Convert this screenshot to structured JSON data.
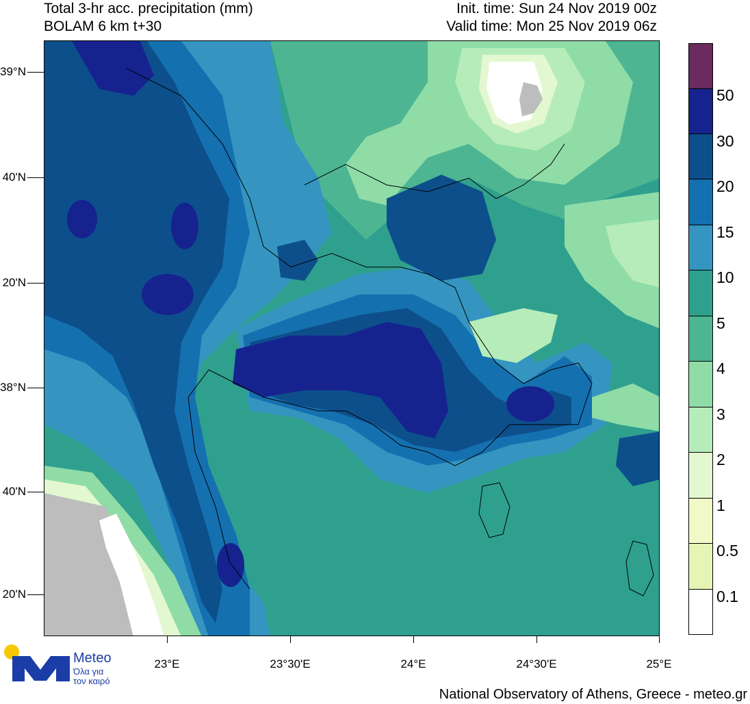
{
  "header": {
    "title_line1": "Total 3-hr acc. precipitation (mm)",
    "title_line2": "BOLAM 6 km t+30",
    "init_time": "Init. time: Sun 24 Nov 2019 00z",
    "valid_time": "Valid time: Mon 25 Nov 2019 06z"
  },
  "axes": {
    "lat_labels": [
      "39°N",
      "40'N",
      "20'N",
      "38°N",
      "40'N",
      "20'N"
    ],
    "lon_labels": [
      "23°E",
      "23°30'E",
      "24°E",
      "24°30'E",
      "25°E"
    ]
  },
  "colorbar": {
    "levels": [
      "50",
      "30",
      "20",
      "15",
      "10",
      "5",
      "4",
      "3",
      "2",
      "1",
      "0.5",
      "0.1"
    ],
    "colors": [
      "#6b2b5e",
      "#16238f",
      "#0d4f8b",
      "#1570b0",
      "#3595c0",
      "#2fa08e",
      "#4db592",
      "#8fdca7",
      "#b6ecb9",
      "#e3f8d0",
      "#f1f9c8",
      "#e6f4b6",
      "#ffffff"
    ],
    "land_mask_color": "#bdbdbd"
  },
  "logo": {
    "name": "Meteo",
    "tagline_1": "Όλα για",
    "tagline_2": "τον καιρό",
    "colors": {
      "sun": "#f7c800",
      "mark": "#1a3da8"
    }
  },
  "footer": {
    "credit": "National Observatory of Athens, Greece - meteo.gr"
  }
}
